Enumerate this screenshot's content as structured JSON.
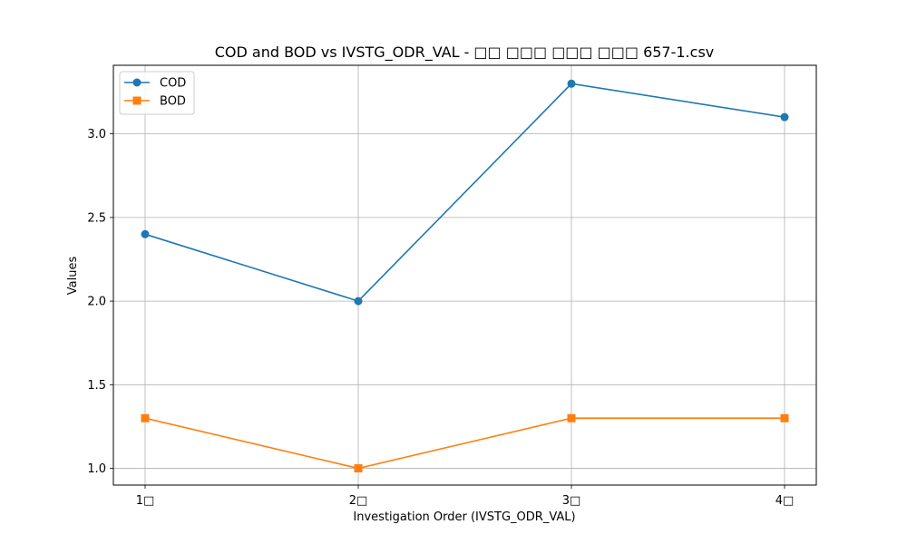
{
  "chart_data": {
    "type": "line",
    "title": "COD and BOD vs IVSTG_ODR_VAL -  □□ □□□ □□□ □□□ 657-1.csv",
    "xlabel": "Investigation Order (IVSTG_ODR_VAL)",
    "ylabel": "Values",
    "categories": [
      "1□",
      "2□",
      "3□",
      "4□"
    ],
    "ylim": [
      0.9,
      3.41
    ],
    "yticks": [
      "1.0",
      "1.5",
      "2.0",
      "2.5",
      "3.0"
    ],
    "grid": true,
    "legend_position": "top-left",
    "series": [
      {
        "name": "COD",
        "values": [
          2.4,
          2.0,
          3.3,
          3.1
        ],
        "color": "#1f77b4",
        "marker": "circle"
      },
      {
        "name": "BOD",
        "values": [
          1.3,
          1.0,
          1.3,
          1.3
        ],
        "color": "#ff7f0e",
        "marker": "square"
      }
    ]
  }
}
